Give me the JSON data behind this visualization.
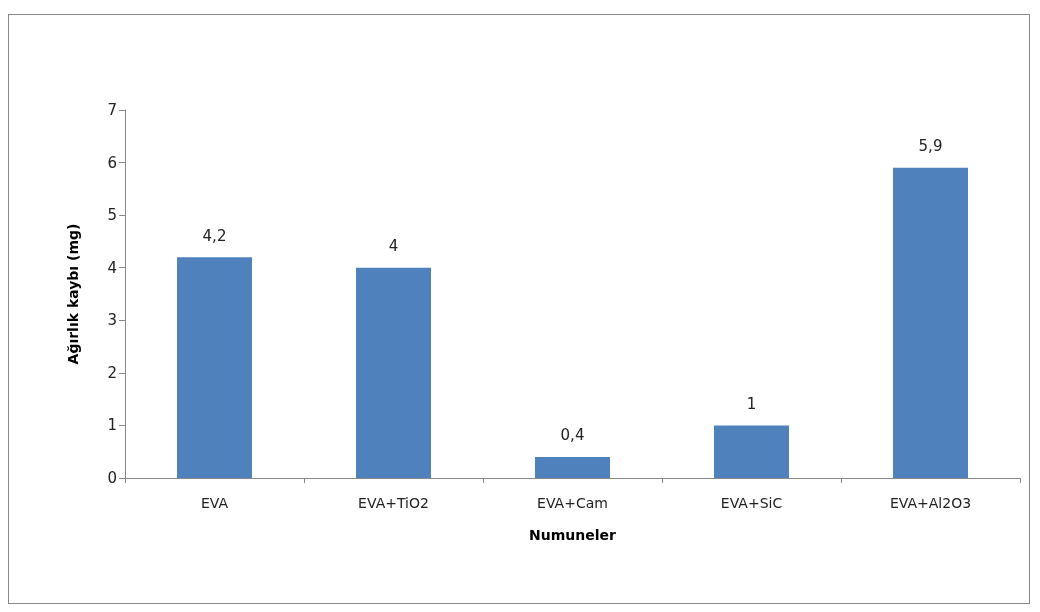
{
  "chart_data": {
    "type": "bar",
    "xlabel": "Numuneler",
    "ylabel": "Ağırlık kaybı (mg)",
    "categories": [
      "EVA",
      "EVA+TiO2",
      "EVA+Cam",
      "EVA+SiC",
      "EVA+Al2O3"
    ],
    "values": [
      4.2,
      4,
      0.4,
      1,
      5.9
    ],
    "value_labels": [
      "4,2",
      "4",
      "0,4",
      "1",
      "5,9"
    ],
    "color": "#4f81bd",
    "ylim": [
      0,
      7
    ],
    "yticks": [
      0,
      1,
      2,
      3,
      4,
      5,
      6,
      7
    ],
    "grid": false
  }
}
